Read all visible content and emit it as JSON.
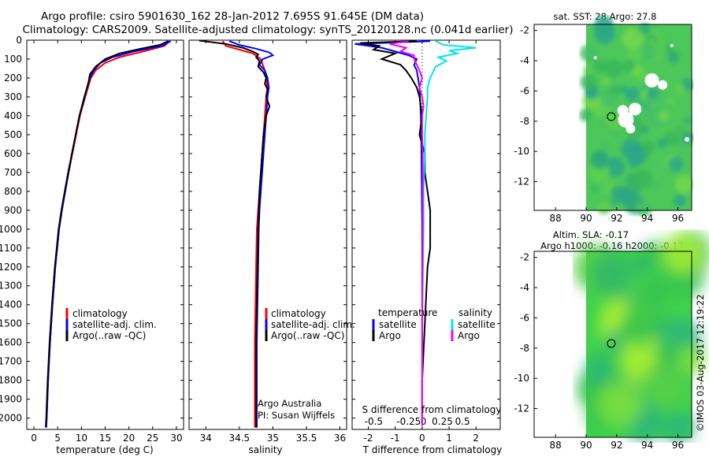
{
  "title": {
    "line1": "Argo profile: csiro 5901630_162 28-Jan-2012 7.695S 91.645E (DM data)",
    "line2": "Climatology: CARS2009. Satellite-adjusted climatology: synTS_20120128.nc (0.041d earlier)"
  },
  "colors": {
    "clim": "#ff0000",
    "sat": "#0000ff",
    "argo": "#000000",
    "sat_s": "#00e5ee",
    "argo_s": "#ee00ee"
  },
  "depth_axis": {
    "ticks": [
      0,
      100,
      200,
      300,
      400,
      500,
      600,
      700,
      800,
      900,
      1000,
      1100,
      1200,
      1300,
      1400,
      1500,
      1600,
      1700,
      1800,
      1900,
      2000
    ],
    "range": [
      0,
      2060
    ]
  },
  "chart_data": [
    {
      "type": "line",
      "name": "temperature",
      "xlabel": "temperature (deg C)",
      "xlim": [
        -1.5,
        31.5
      ],
      "xticks": [
        0,
        5,
        10,
        15,
        20,
        25,
        30
      ],
      "legend": [
        "climatology",
        "satellite-adj. clim.",
        "Argo(..raw -QC)"
      ],
      "series": [
        {
          "name": "climatology",
          "color": "#ff0000",
          "depth": [
            5,
            30,
            60,
            90,
            120,
            160,
            200,
            250,
            300,
            400,
            500,
            600,
            700,
            800,
            900,
            1000,
            1200,
            1400,
            1600,
            1800,
            2000,
            2050
          ],
          "values": [
            28.5,
            27.5,
            23,
            18,
            15,
            13,
            12,
            11.4,
            10.8,
            9.7,
            8.9,
            8.1,
            7.3,
            6.6,
            5.9,
            5.3,
            4.5,
            3.9,
            3.4,
            3,
            2.7,
            2.6
          ]
        },
        {
          "name": "satellite-adj. clim.",
          "color": "#0000ff",
          "depth": [
            5,
            30,
            60,
            90,
            120,
            160,
            200,
            250,
            300,
            400,
            500,
            600,
            700,
            800,
            900,
            1000,
            1200,
            1400,
            1600,
            1800,
            2000,
            2050
          ],
          "values": [
            28.8,
            27,
            21,
            16.5,
            14,
            12.6,
            11.8,
            11.2,
            10.6,
            9.6,
            8.8,
            8,
            7.3,
            6.6,
            5.9,
            5.3,
            4.5,
            3.9,
            3.4,
            3,
            2.7,
            2.6
          ]
        },
        {
          "name": "Argo(..raw -QC)",
          "color": "#000000",
          "depth": [
            5,
            25,
            45,
            70,
            100,
            140,
            180,
            220,
            260,
            300,
            400,
            500,
            600,
            700,
            800,
            900,
            1000,
            1200,
            1400,
            1600,
            1800,
            2000,
            2050
          ],
          "values": [
            28.3,
            26.5,
            22.5,
            18,
            15,
            13,
            11.8,
            11.5,
            11.1,
            10.7,
            9.6,
            8.8,
            8,
            7.2,
            6.5,
            5.8,
            5.2,
            4.4,
            3.8,
            3.3,
            2.9,
            2.6,
            2.5
          ]
        }
      ]
    },
    {
      "type": "line",
      "name": "salinity",
      "xlabel": "salinity",
      "xlim": [
        33.75,
        36.1
      ],
      "xticks": [
        34,
        34.5,
        35,
        35.5,
        36
      ],
      "legend": [
        "climatology",
        "satellite-adj. clim.",
        "Argo(..raw -QC)"
      ],
      "annotation_line1": "Argo Australia",
      "annotation_line2": "PI: Susan Wijffels",
      "series": [
        {
          "name": "climatology",
          "color": "#ff0000",
          "depth": [
            5,
            30,
            50,
            70,
            100,
            130,
            160,
            200,
            250,
            300,
            400,
            500,
            600,
            700,
            800,
            900,
            1000,
            1200,
            1400,
            1600,
            1800,
            2000,
            2050
          ],
          "values": [
            34.25,
            34.3,
            34.5,
            34.7,
            34.82,
            34.85,
            34.88,
            34.9,
            34.92,
            34.9,
            34.88,
            34.86,
            34.84,
            34.82,
            34.8,
            34.78,
            34.76,
            34.75,
            34.74,
            34.73,
            34.73,
            34.73,
            34.73
          ]
        },
        {
          "name": "satellite-adj. clim.",
          "color": "#0000ff",
          "depth": [
            5,
            25,
            45,
            65,
            80,
            100,
            130,
            160,
            200,
            250,
            300,
            400,
            500,
            600,
            700,
            800,
            900,
            1000,
            1200,
            1400,
            1600,
            1800,
            2000,
            2050
          ],
          "values": [
            34.35,
            34.5,
            34.75,
            34.95,
            35.0,
            34.85,
            34.8,
            34.88,
            34.92,
            34.94,
            34.92,
            34.9,
            34.88,
            34.86,
            34.84,
            34.82,
            34.8,
            34.79,
            34.78,
            34.77,
            34.76,
            34.76,
            34.76,
            34.76
          ]
        },
        {
          "name": "Argo(..raw -QC)",
          "color": "#000000",
          "depth": [
            2,
            20,
            40,
            60,
            75,
            90,
            110,
            140,
            170,
            200,
            230,
            260,
            300,
            350,
            400,
            450,
            500,
            600,
            700,
            800,
            900,
            1000,
            1200,
            1400,
            1600,
            1800,
            2000,
            2050
          ],
          "values": [
            33.9,
            34.3,
            34.55,
            34.7,
            34.78,
            34.75,
            34.8,
            34.78,
            34.86,
            34.9,
            34.88,
            34.92,
            34.9,
            34.95,
            34.9,
            34.88,
            34.86,
            34.84,
            34.82,
            34.8,
            34.79,
            34.78,
            34.77,
            34.76,
            34.75,
            34.75,
            34.75,
            34.75
          ]
        }
      ]
    },
    {
      "type": "line",
      "name": "difference",
      "xlabel": "T difference from climatology",
      "xlabel_top": "S difference from climatology",
      "xlim": [
        -2.6,
        2.9
      ],
      "xticks": [
        -2,
        -1,
        0,
        1,
        2
      ],
      "top_ticks": [
        {
          "x": -1.8,
          "label": "-0.5"
        },
        {
          "x": -0.5,
          "label": "-0.25"
        },
        {
          "x": 0.05,
          "label": "0"
        },
        {
          "x": 0.75,
          "label": "0.25"
        },
        {
          "x": 1.5,
          "label": "0.5"
        }
      ],
      "legend_left_title": "temperature",
      "legend_right_title": "salinity",
      "legend_left": [
        "satellite",
        "Argo"
      ],
      "legend_right": [
        "satellite",
        "Argo"
      ],
      "series": [
        {
          "name": "T satellite",
          "color": "#0000ff",
          "depth": [
            5,
            20,
            40,
            60,
            80,
            100,
            130,
            160,
            200,
            250,
            300,
            400,
            500,
            700,
            1000,
            1500,
            2000,
            2040
          ],
          "values": [
            0.3,
            -2.5,
            -1.5,
            -1.0,
            -0.5,
            -0.2,
            -0.3,
            -0.2,
            -0.15,
            -0.1,
            -0.08,
            -0.05,
            -0.03,
            -0.02,
            0,
            0,
            0,
            0
          ]
        },
        {
          "name": "T Argo",
          "color": "#000000",
          "depth": [
            5,
            15,
            30,
            50,
            70,
            100,
            130,
            160,
            200,
            250,
            300,
            400,
            500,
            600,
            700,
            800,
            900,
            1000,
            1100,
            1200,
            1500,
            1800,
            2040
          ],
          "values": [
            -0.2,
            -2.3,
            -1.6,
            -1.8,
            -1.0,
            -1.5,
            -0.8,
            -0.6,
            -0.4,
            -0.2,
            -0.1,
            0.0,
            -0.1,
            0.1,
            0.1,
            0.2,
            0.3,
            0.3,
            0.3,
            0.2,
            0.1,
            0,
            0
          ]
        },
        {
          "name": "S satellite",
          "color": "#00e5ee",
          "depth": [
            5,
            25,
            40,
            55,
            70,
            90,
            110,
            140,
            170,
            200,
            250,
            300,
            400,
            500,
            600,
            800,
            1000,
            1500,
            2040
          ],
          "values": [
            0.5,
            0.8,
            2.0,
            1.0,
            1.3,
            0.6,
            0.9,
            0.5,
            0.4,
            0.3,
            0.2,
            0.2,
            0.15,
            0.1,
            0.1,
            0.05,
            0.05,
            0,
            0
          ]
        },
        {
          "name": "S Argo",
          "color": "#ee00ee",
          "depth": [
            5,
            20,
            40,
            60,
            80,
            100,
            130,
            160,
            200,
            250,
            300,
            350,
            400,
            500,
            600,
            800,
            1000,
            1500,
            2040
          ],
          "values": [
            -0.5,
            -1.2,
            -0.6,
            -0.8,
            -0.3,
            -0.3,
            -0.2,
            -0.1,
            0.0,
            -0.1,
            0.0,
            0.05,
            0.0,
            0,
            0.02,
            0.02,
            0.02,
            0,
            0
          ]
        }
      ]
    }
  ],
  "maps": [
    {
      "title": "sat. SST: 28 Argo: 27.8",
      "xticks": [
        88,
        90,
        92,
        94,
        96
      ],
      "yticks": [
        -2,
        -4,
        -6,
        -8,
        -10,
        -12
      ],
      "marker": {
        "lon": 91.645,
        "lat": -7.695
      }
    },
    {
      "title_line1": "Altim. SLA: -0.17",
      "title_line2": "Argo h1000: -0.16 h2000: -0.17",
      "xticks": [
        88,
        90,
        92,
        94,
        96
      ],
      "yticks": [
        -2,
        -4,
        -6,
        -8,
        -10,
        -12
      ],
      "marker": {
        "lon": 91.645,
        "lat": -7.695
      }
    }
  ],
  "stamp": "©IMOS 03-Aug-2017 12:19:22"
}
